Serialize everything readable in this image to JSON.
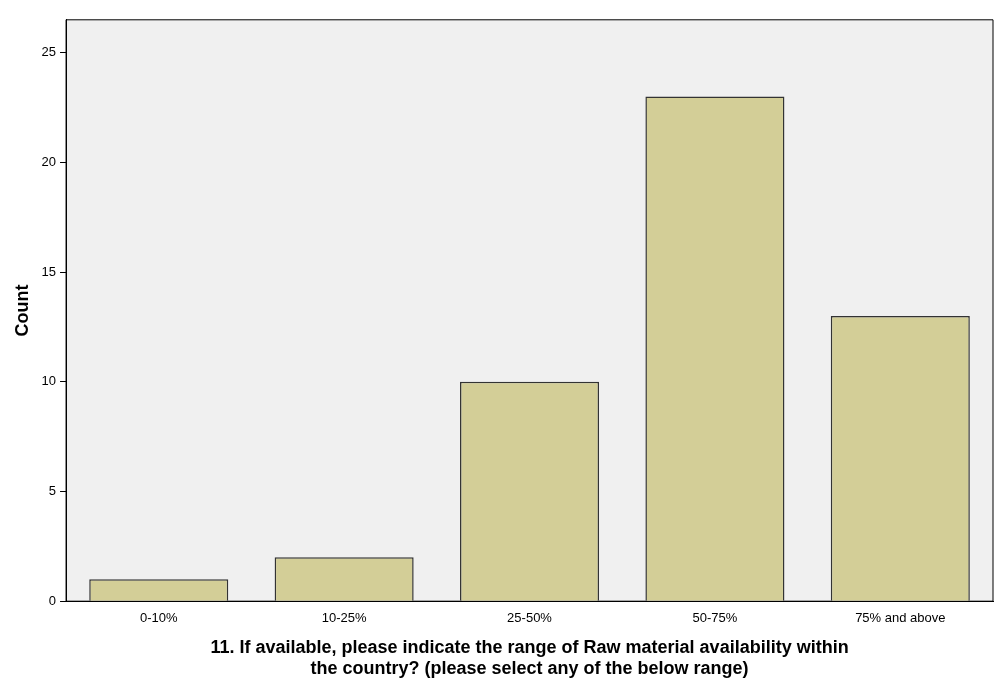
{
  "chart_data": {
    "type": "bar",
    "xlabel": "11. If available, please indicate the range of Raw material availability within the country? (please select any of the below range)",
    "ylabel": "Count",
    "categories": [
      "0-10%",
      "10-25%",
      "25-50%",
      "50-75%",
      "75% and above"
    ],
    "values": [
      1,
      2,
      10,
      23,
      13
    ],
    "color": "#d3ce97",
    "ylim": [
      0,
      26.5
    ],
    "yticks": [
      0,
      5,
      10,
      15,
      20,
      25
    ],
    "grid": false,
    "legend": false
  }
}
